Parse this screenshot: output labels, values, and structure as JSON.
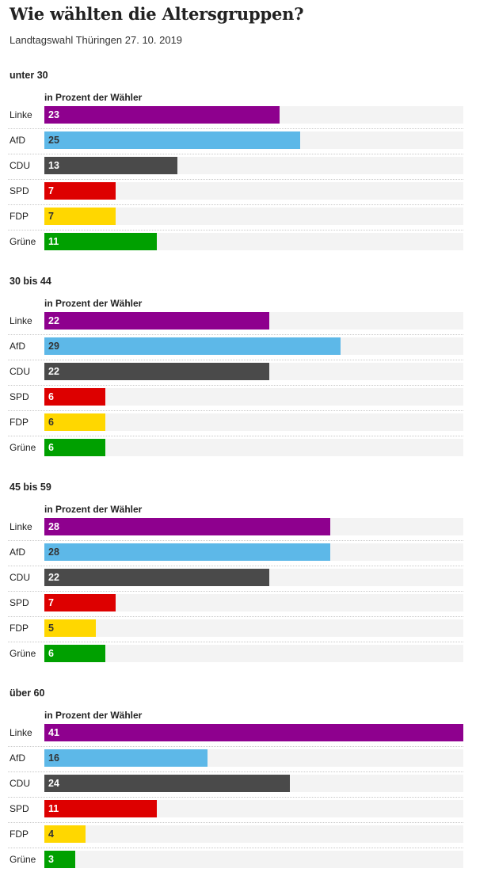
{
  "title": "Wie wählten die Altersgruppen?",
  "subtitle": "Landtagswahl Thüringen 27. 10. 2019",
  "colors": {
    "Linke": "#8e008e",
    "AfD": "#5db8e8",
    "CDU": "#4a4a4a",
    "SPD": "#dd0000",
    "FDP": "#ffd700",
    "Grüne": "#00a000",
    "track": "#f3f3f3"
  },
  "chart_data": [
    {
      "type": "bar",
      "orientation": "horizontal",
      "title": "unter 30",
      "subtitle": "in Prozent der Wähler",
      "categories": [
        "Linke",
        "AfD",
        "CDU",
        "SPD",
        "FDP",
        "Grüne"
      ],
      "values": [
        23,
        25,
        13,
        7,
        7,
        11
      ],
      "xlim": [
        0,
        41
      ]
    },
    {
      "type": "bar",
      "orientation": "horizontal",
      "title": "30 bis 44",
      "subtitle": "in Prozent der Wähler",
      "categories": [
        "Linke",
        "AfD",
        "CDU",
        "SPD",
        "FDP",
        "Grüne"
      ],
      "values": [
        22,
        29,
        22,
        6,
        6,
        6
      ],
      "xlim": [
        0,
        41
      ]
    },
    {
      "type": "bar",
      "orientation": "horizontal",
      "title": "45 bis 59",
      "subtitle": "in Prozent der Wähler",
      "categories": [
        "Linke",
        "AfD",
        "CDU",
        "SPD",
        "FDP",
        "Grüne"
      ],
      "values": [
        28,
        28,
        22,
        7,
        5,
        6
      ],
      "xlim": [
        0,
        41
      ]
    },
    {
      "type": "bar",
      "orientation": "horizontal",
      "title": "über 60",
      "subtitle": "in Prozent der Wähler",
      "categories": [
        "Linke",
        "AfD",
        "CDU",
        "SPD",
        "FDP",
        "Grüne"
      ],
      "values": [
        41,
        16,
        24,
        11,
        4,
        3
      ],
      "xlim": [
        0,
        41
      ]
    }
  ]
}
